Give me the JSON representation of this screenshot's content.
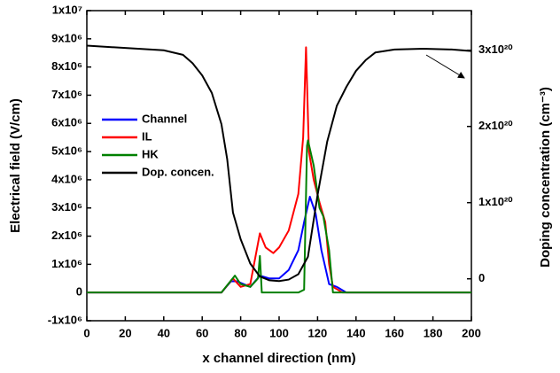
{
  "chart_data": {
    "type": "line",
    "x_label": "x channel direction (nm)",
    "y_label": "Electrical field (V/cm)",
    "y2_label": "Doping concentration (cm⁻³)",
    "xlim": [
      0,
      200
    ],
    "xticks": [
      0,
      20,
      40,
      60,
      80,
      100,
      120,
      140,
      160,
      180,
      200
    ],
    "ylim": [
      -1000000,
      10000000
    ],
    "yticks": [
      {
        "value": -1000000,
        "label": "-1x10⁶"
      },
      {
        "value": 0,
        "label": "0"
      },
      {
        "value": 1000000,
        "label": "1x10⁶"
      },
      {
        "value": 2000000,
        "label": "2x10⁶"
      },
      {
        "value": 3000000,
        "label": "3x10⁶"
      },
      {
        "value": 4000000,
        "label": "4x10⁶"
      },
      {
        "value": 5000000,
        "label": "5x10⁶"
      },
      {
        "value": 6000000,
        "label": "6x10⁶"
      },
      {
        "value": 7000000,
        "label": "7x10⁶"
      },
      {
        "value": 8000000,
        "label": "8x10⁶"
      },
      {
        "value": 9000000,
        "label": "9x10⁶"
      },
      {
        "value": 10000000,
        "label": "1x10⁷"
      }
    ],
    "y2lim": [
      -5.5e+19,
      3.52e+20
    ],
    "y2ticks": [
      {
        "value": 0,
        "label": "0"
      },
      {
        "value": 1e+20,
        "label": "1x10²⁰"
      },
      {
        "value": 2e+20,
        "label": "2x10²⁰"
      },
      {
        "value": 3e+20,
        "label": "3x10²⁰"
      }
    ],
    "series": [
      {
        "name": "Channel",
        "color": "#0000ff",
        "x": [
          0,
          70,
          75,
          78,
          85,
          90,
          95,
          100,
          105,
          110,
          113,
          116,
          119,
          122,
          126,
          130,
          135,
          200
        ],
        "values": [
          0,
          0,
          400000,
          400000,
          200000,
          600000,
          500000,
          500000,
          800000,
          1500000,
          2500000,
          3400000,
          2800000,
          1500000,
          300000,
          200000,
          0,
          0
        ]
      },
      {
        "name": "IL",
        "color": "#ff0000",
        "x": [
          0,
          70,
          76,
          80,
          85,
          90,
          93,
          97,
          100,
          105,
          110,
          112.5,
          114,
          115.5,
          118,
          121,
          124,
          126,
          128,
          133,
          200
        ],
        "values": [
          0,
          0,
          500000,
          200000,
          300000,
          2100000,
          1600000,
          1400000,
          1600000,
          2200000,
          3500000,
          5500000,
          8700000,
          5000000,
          4000000,
          3200000,
          2500000,
          1000000,
          200000,
          0,
          0
        ]
      },
      {
        "name": "HK",
        "color": "#008000",
        "x": [
          0,
          70,
          77,
          80,
          85,
          89,
          90,
          91,
          100,
          110,
          113,
          114.5,
          115,
          118,
          121,
          123,
          126,
          128,
          200
        ],
        "values": [
          0,
          0,
          600000,
          300000,
          200000,
          500000,
          1300000,
          0,
          0,
          0,
          100000,
          5200000,
          5400000,
          4500000,
          3000000,
          2700000,
          1500000,
          0,
          0
        ]
      },
      {
        "name": "Dop. concen.",
        "color": "#000000",
        "axis": "y2",
        "x": [
          0,
          20,
          40,
          50,
          55,
          60,
          65,
          70,
          73,
          76,
          80,
          85,
          90,
          95,
          100,
          105,
          110,
          115,
          120,
          125,
          130,
          135,
          140,
          145,
          150,
          160,
          175,
          190,
          200
        ],
        "values": [
          3.06e+20,
          3.03e+20,
          3e+20,
          2.94e+20,
          2.83e+20,
          2.67e+20,
          2.44e+20,
          2.03e+20,
          1.57e+20,
          8.7e+19,
          5.2e+19,
          2e+19,
          3e+18,
          -2e+18,
          -3e+18,
          -1e+18,
          6e+18,
          2.9e+19,
          1.1e+20,
          1.8e+20,
          2.27e+20,
          2.52e+20,
          2.73e+20,
          2.87e+20,
          2.97e+20,
          3.01e+20,
          3.02e+20,
          3.01e+20,
          2.99e+20
        ]
      }
    ]
  }
}
